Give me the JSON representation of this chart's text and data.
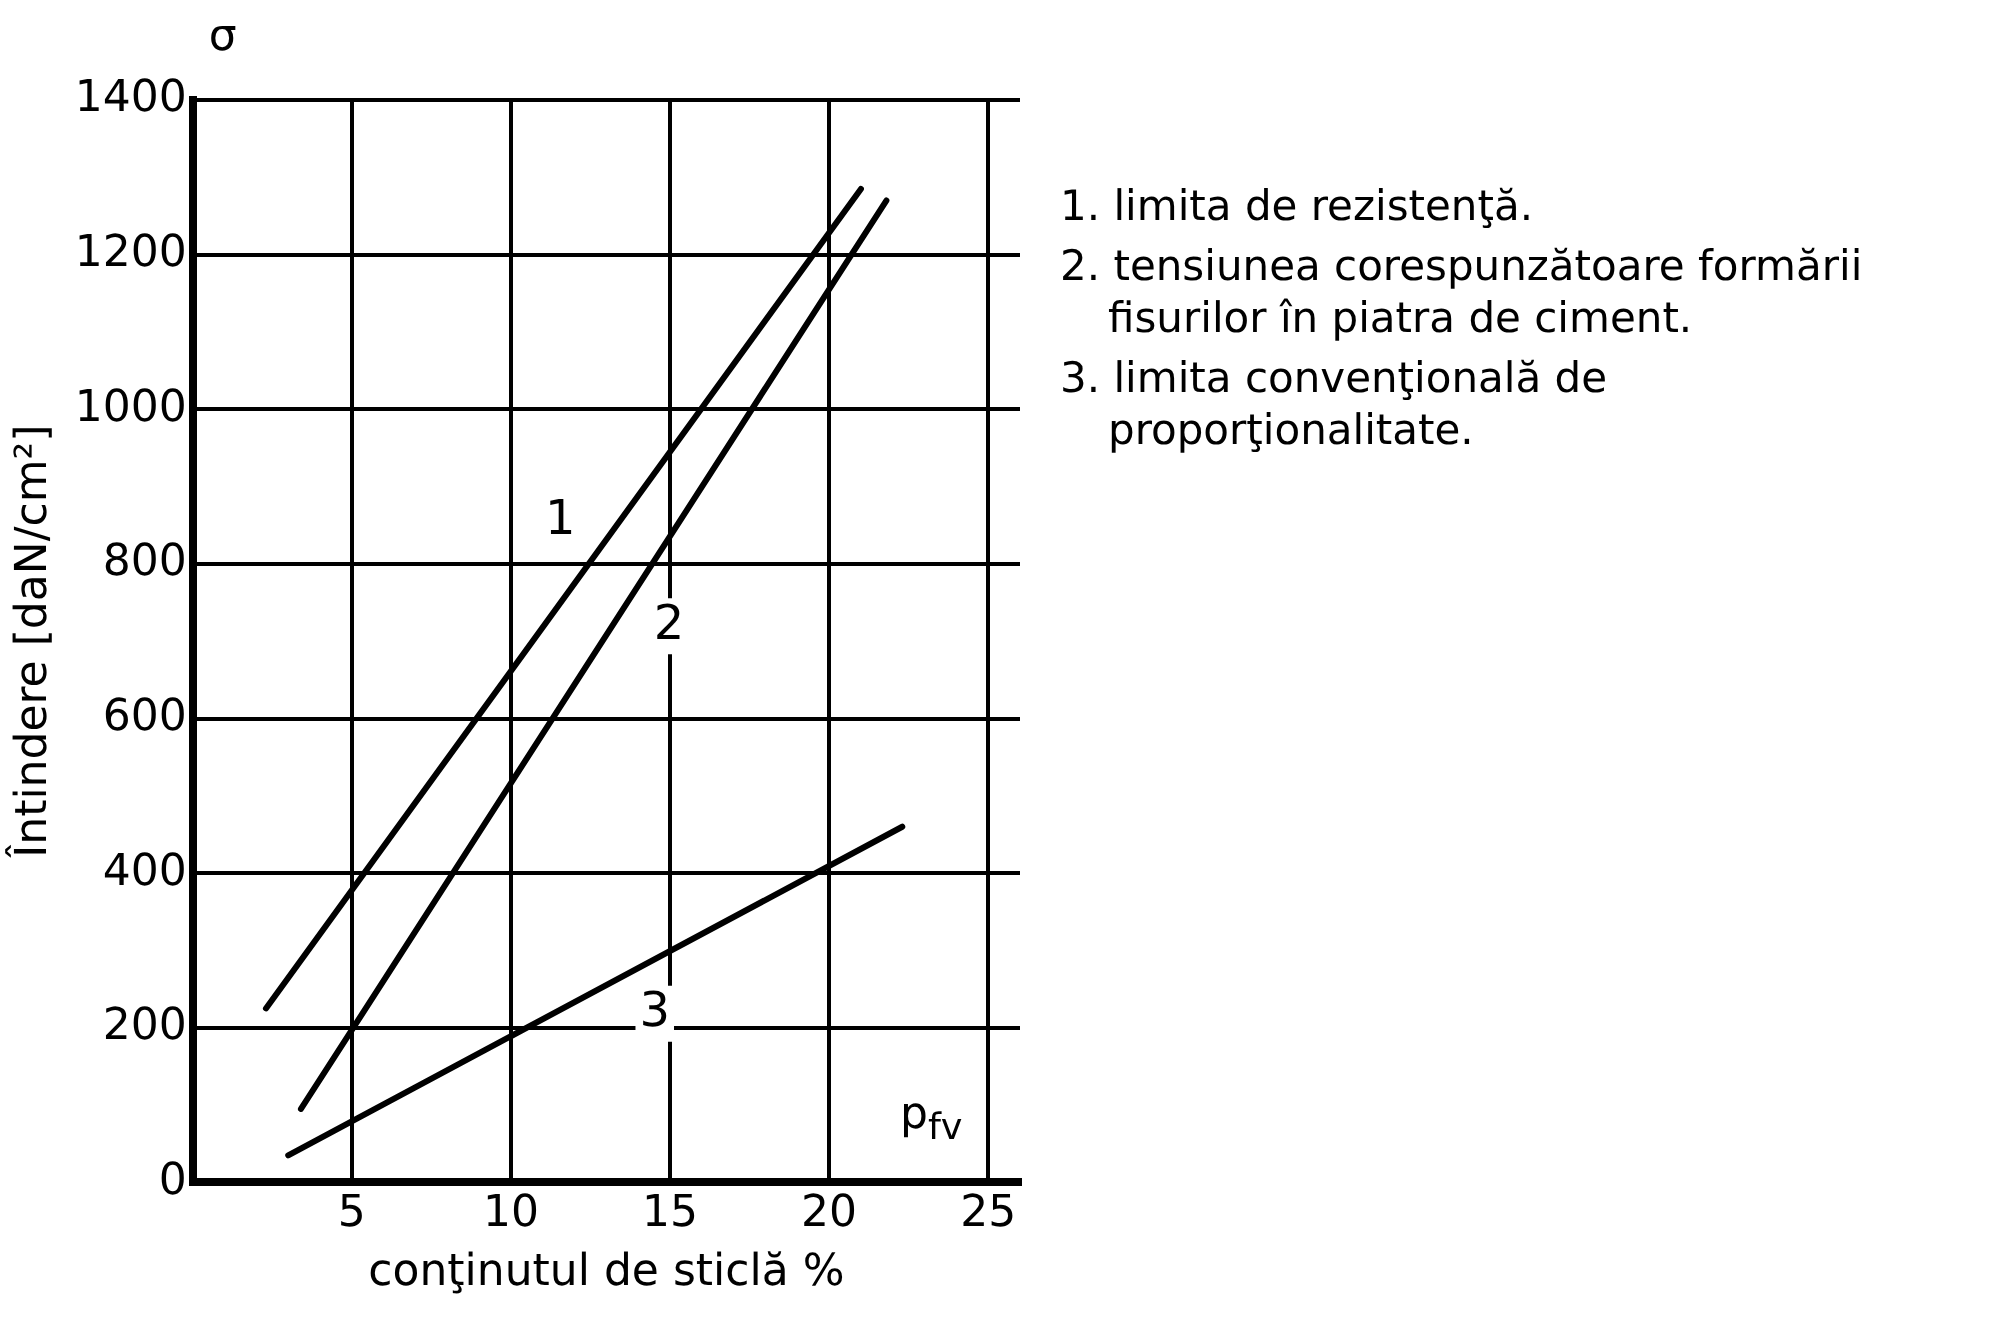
{
  "chart_data": {
    "type": "line",
    "xlabel": "conţinutul de sticlă %",
    "ylabel": "Întindere [daN/cm²]",
    "xlim": [
      0,
      26
    ],
    "ylim": [
      0,
      1400
    ],
    "xticks": [
      5,
      10,
      15,
      20,
      25
    ],
    "yticks": [
      0,
      200,
      400,
      600,
      800,
      1000,
      1200,
      1400
    ],
    "grid": true,
    "legend": false,
    "marker": "none",
    "line_style": "solid",
    "series": [
      {
        "name": "1",
        "color": "#000000",
        "x": [
          2.3,
          21.0
        ],
        "values": [
          225,
          1285
        ]
      },
      {
        "name": "2",
        "color": "#000000",
        "x": [
          3.4,
          21.8
        ],
        "values": [
          95,
          1270
        ]
      },
      {
        "name": "3",
        "color": "#000000",
        "x": [
          3.0,
          22.3
        ],
        "values": [
          35,
          460
        ]
      }
    ],
    "annotations": [
      "σ",
      "p$_{fv}$",
      "1. limita de rezistenţă.",
      "2. tensiunea corespunzătoare formării fisurilor în piatra de ciment.",
      "3. limita convenţională de proporţionalitate."
    ]
  }
}
